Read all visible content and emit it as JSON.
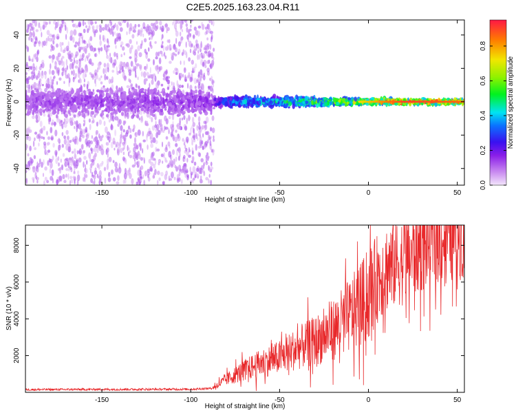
{
  "title": "C2E5.2025.163.23.04.R11",
  "chart_data": [
    {
      "type": "heatmap",
      "name": "spectrogram",
      "xlabel": "Height of straight line (km)",
      "ylabel": "Frequency (Hz)",
      "xlim": [
        -193,
        54
      ],
      "ylim": [
        -50,
        49
      ],
      "xticks": [
        -150,
        -100,
        -50,
        0,
        50
      ],
      "yticks": [
        -40,
        -20,
        0,
        20,
        40
      ],
      "colorbar": {
        "label": "Normalized spectral amplitude",
        "range": [
          0.0,
          0.95
        ],
        "ticks": [
          0.0,
          0.2,
          0.4,
          0.6,
          0.8
        ],
        "colormap": "purple-blue-cyan-green-yellow-red"
      },
      "noise_region": {
        "x_from": -193,
        "x_to": -87,
        "freq_spread": 49,
        "amplitude": 0.1
      },
      "band_center_freq": 0,
      "band_width_hz": [
        {
          "x": -193,
          "halfwidth": 7
        },
        {
          "x": -88,
          "halfwidth": 7
        },
        {
          "x": -80,
          "halfwidth": 4
        },
        {
          "x": -40,
          "halfwidth": 4
        },
        {
          "x": 0,
          "halfwidth": 2.5
        },
        {
          "x": 54,
          "halfwidth": 2
        }
      ],
      "band_amplitude": [
        {
          "x": -193,
          "value": 0.15
        },
        {
          "x": -88,
          "value": 0.18
        },
        {
          "x": -80,
          "value": 0.4
        },
        {
          "x": -40,
          "value": 0.55
        },
        {
          "x": 0,
          "value": 0.8
        },
        {
          "x": 20,
          "value": 0.95
        },
        {
          "x": 54,
          "value": 0.9
        }
      ]
    },
    {
      "type": "line",
      "name": "snr",
      "xlabel": "Height of straight line (km)",
      "ylabel": "SNR (10 * v/v)",
      "xlim": [
        -193,
        54
      ],
      "ylim": [
        0,
        9100
      ],
      "xticks": [
        -150,
        -100,
        -50,
        0,
        50
      ],
      "yticks": [
        2000,
        4000,
        6000,
        8000
      ],
      "color": "#e8282a",
      "series": [
        {
          "name": "SNR",
          "x": [
            -193,
            -150,
            -100,
            -88,
            -80,
            -70,
            -60,
            -50,
            -40,
            -30,
            -20,
            -10,
            0,
            5,
            10,
            20,
            30,
            40,
            54
          ],
          "values": [
            150,
            160,
            170,
            220,
            700,
            1200,
            1600,
            1900,
            2400,
            2800,
            3400,
            4200,
            5200,
            6200,
            6800,
            7200,
            7900,
            8300,
            8600
          ]
        }
      ]
    }
  ]
}
